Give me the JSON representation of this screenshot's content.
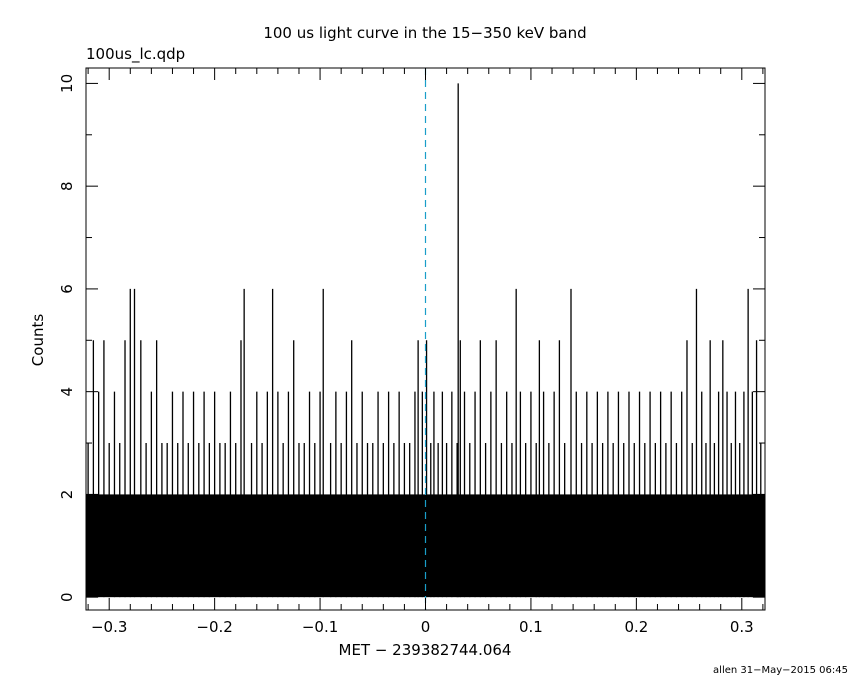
{
  "chart_data": {
    "type": "bar",
    "title": "100 us light curve in the 15−350 keV band",
    "subtitle": "100us_lc.qdp",
    "xlabel": "MET − 239382744.064",
    "ylabel": "Counts",
    "footer": "allen 31−May−2015 06:45",
    "xlim": [
      -0.322,
      0.322
    ],
    "ylim": [
      -0.25,
      10.3
    ],
    "x_ticks": [
      -0.3,
      -0.2,
      -0.1,
      0,
      0.1,
      0.2,
      0.3
    ],
    "x_tick_labels": [
      "−0.3",
      "−0.2",
      "−0.1",
      "0",
      "0.1",
      "0.2",
      "0.3"
    ],
    "y_ticks": [
      0,
      2,
      4,
      6,
      8,
      10
    ],
    "y_tick_labels": [
      "0",
      "2",
      "4",
      "6",
      "8",
      "10"
    ],
    "bin_width": 0.0001,
    "reference_line_x": 0,
    "reference_line_color": "#1a9ec9",
    "bar_color": "#000000",
    "bins": [
      {
        "x": -0.32,
        "y": 3
      },
      {
        "x": -0.315,
        "y": 5
      },
      {
        "x": -0.31,
        "y": 4
      },
      {
        "x": -0.305,
        "y": 5
      },
      {
        "x": -0.3,
        "y": 3
      },
      {
        "x": -0.295,
        "y": 4
      },
      {
        "x": -0.29,
        "y": 3
      },
      {
        "x": -0.285,
        "y": 5
      },
      {
        "x": -0.28,
        "y": 6
      },
      {
        "x": -0.276,
        "y": 6
      },
      {
        "x": -0.27,
        "y": 5
      },
      {
        "x": -0.265,
        "y": 3
      },
      {
        "x": -0.26,
        "y": 4
      },
      {
        "x": -0.255,
        "y": 5
      },
      {
        "x": -0.25,
        "y": 3
      },
      {
        "x": -0.245,
        "y": 3
      },
      {
        "x": -0.24,
        "y": 4
      },
      {
        "x": -0.235,
        "y": 3
      },
      {
        "x": -0.23,
        "y": 4
      },
      {
        "x": -0.225,
        "y": 3
      },
      {
        "x": -0.22,
        "y": 4
      },
      {
        "x": -0.215,
        "y": 3
      },
      {
        "x": -0.21,
        "y": 4
      },
      {
        "x": -0.205,
        "y": 3
      },
      {
        "x": -0.2,
        "y": 4
      },
      {
        "x": -0.195,
        "y": 3
      },
      {
        "x": -0.19,
        "y": 3
      },
      {
        "x": -0.185,
        "y": 4
      },
      {
        "x": -0.18,
        "y": 3
      },
      {
        "x": -0.175,
        "y": 5
      },
      {
        "x": -0.172,
        "y": 6
      },
      {
        "x": -0.165,
        "y": 3
      },
      {
        "x": -0.16,
        "y": 4
      },
      {
        "x": -0.155,
        "y": 3
      },
      {
        "x": -0.15,
        "y": 4
      },
      {
        "x": -0.145,
        "y": 6
      },
      {
        "x": -0.14,
        "y": 4
      },
      {
        "x": -0.135,
        "y": 3
      },
      {
        "x": -0.13,
        "y": 4
      },
      {
        "x": -0.125,
        "y": 5
      },
      {
        "x": -0.12,
        "y": 3
      },
      {
        "x": -0.115,
        "y": 3
      },
      {
        "x": -0.11,
        "y": 4
      },
      {
        "x": -0.105,
        "y": 3
      },
      {
        "x": -0.1,
        "y": 4
      },
      {
        "x": -0.097,
        "y": 6
      },
      {
        "x": -0.09,
        "y": 3
      },
      {
        "x": -0.085,
        "y": 4
      },
      {
        "x": -0.08,
        "y": 3
      },
      {
        "x": -0.075,
        "y": 4
      },
      {
        "x": -0.07,
        "y": 5
      },
      {
        "x": -0.065,
        "y": 3
      },
      {
        "x": -0.06,
        "y": 4
      },
      {
        "x": -0.055,
        "y": 3
      },
      {
        "x": -0.05,
        "y": 3
      },
      {
        "x": -0.045,
        "y": 4
      },
      {
        "x": -0.04,
        "y": 3
      },
      {
        "x": -0.035,
        "y": 4
      },
      {
        "x": -0.03,
        "y": 3
      },
      {
        "x": -0.025,
        "y": 4
      },
      {
        "x": -0.02,
        "y": 3
      },
      {
        "x": -0.015,
        "y": 3
      },
      {
        "x": -0.01,
        "y": 4
      },
      {
        "x": -0.007,
        "y": 5
      },
      {
        "x": -0.003,
        "y": 4
      },
      {
        "x": 0.001,
        "y": 5
      },
      {
        "x": 0.005,
        "y": 3
      },
      {
        "x": 0.008,
        "y": 4
      },
      {
        "x": 0.012,
        "y": 3
      },
      {
        "x": 0.016,
        "y": 4
      },
      {
        "x": 0.02,
        "y": 3
      },
      {
        "x": 0.025,
        "y": 4
      },
      {
        "x": 0.03,
        "y": 3
      },
      {
        "x": 0.031,
        "y": 10
      },
      {
        "x": 0.033,
        "y": 5
      },
      {
        "x": 0.037,
        "y": 4
      },
      {
        "x": 0.042,
        "y": 3
      },
      {
        "x": 0.047,
        "y": 4
      },
      {
        "x": 0.052,
        "y": 5
      },
      {
        "x": 0.057,
        "y": 3
      },
      {
        "x": 0.062,
        "y": 4
      },
      {
        "x": 0.067,
        "y": 5
      },
      {
        "x": 0.072,
        "y": 3
      },
      {
        "x": 0.077,
        "y": 4
      },
      {
        "x": 0.082,
        "y": 3
      },
      {
        "x": 0.086,
        "y": 6
      },
      {
        "x": 0.09,
        "y": 4
      },
      {
        "x": 0.095,
        "y": 3
      },
      {
        "x": 0.1,
        "y": 4
      },
      {
        "x": 0.105,
        "y": 3
      },
      {
        "x": 0.108,
        "y": 5
      },
      {
        "x": 0.112,
        "y": 4
      },
      {
        "x": 0.117,
        "y": 3
      },
      {
        "x": 0.122,
        "y": 4
      },
      {
        "x": 0.127,
        "y": 5
      },
      {
        "x": 0.132,
        "y": 3
      },
      {
        "x": 0.138,
        "y": 6
      },
      {
        "x": 0.143,
        "y": 4
      },
      {
        "x": 0.148,
        "y": 3
      },
      {
        "x": 0.153,
        "y": 4
      },
      {
        "x": 0.158,
        "y": 3
      },
      {
        "x": 0.163,
        "y": 4
      },
      {
        "x": 0.168,
        "y": 3
      },
      {
        "x": 0.173,
        "y": 4
      },
      {
        "x": 0.178,
        "y": 3
      },
      {
        "x": 0.183,
        "y": 4
      },
      {
        "x": 0.188,
        "y": 3
      },
      {
        "x": 0.193,
        "y": 4
      },
      {
        "x": 0.198,
        "y": 3
      },
      {
        "x": 0.203,
        "y": 4
      },
      {
        "x": 0.208,
        "y": 3
      },
      {
        "x": 0.213,
        "y": 4
      },
      {
        "x": 0.218,
        "y": 3
      },
      {
        "x": 0.223,
        "y": 4
      },
      {
        "x": 0.228,
        "y": 3
      },
      {
        "x": 0.233,
        "y": 4
      },
      {
        "x": 0.238,
        "y": 3
      },
      {
        "x": 0.243,
        "y": 4
      },
      {
        "x": 0.248,
        "y": 5
      },
      {
        "x": 0.253,
        "y": 3
      },
      {
        "x": 0.257,
        "y": 6
      },
      {
        "x": 0.262,
        "y": 4
      },
      {
        "x": 0.266,
        "y": 3
      },
      {
        "x": 0.27,
        "y": 5
      },
      {
        "x": 0.274,
        "y": 3
      },
      {
        "x": 0.278,
        "y": 4
      },
      {
        "x": 0.282,
        "y": 5
      },
      {
        "x": 0.286,
        "y": 4
      },
      {
        "x": 0.29,
        "y": 3
      },
      {
        "x": 0.294,
        "y": 4
      },
      {
        "x": 0.298,
        "y": 3
      },
      {
        "x": 0.302,
        "y": 4
      },
      {
        "x": 0.306,
        "y": 6
      },
      {
        "x": 0.31,
        "y": 4
      },
      {
        "x": 0.314,
        "y": 5
      },
      {
        "x": 0.318,
        "y": 3
      }
    ]
  }
}
